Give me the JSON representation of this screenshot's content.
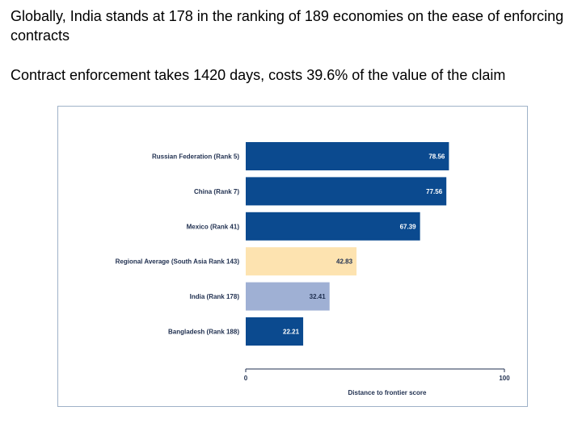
{
  "slide": {
    "headline": "Globally, India stands at 178 in the ranking of 189 economies on the ease of enforcing contracts",
    "subline": "Contract enforcement takes 1420 days, costs 39.6% of the value of the claim"
  },
  "colors": {
    "primary_bar": "#0b4a8f",
    "regional_bar": "#fde3b0",
    "india_bar": "#9fb0d4",
    "axis": "#1f2f4f"
  },
  "chart_data": {
    "type": "bar",
    "orientation": "horizontal",
    "categories": [
      "Russian Federation (Rank 5)",
      "China (Rank 7)",
      "Mexico (Rank 41)",
      "Regional Average (South Asia Rank 143)",
      "India (Rank 178)",
      "Bangladesh (Rank 188)"
    ],
    "values": [
      78.56,
      77.56,
      67.39,
      42.83,
      32.41,
      22.21
    ],
    "value_labels": [
      "78.56",
      "77.56",
      "67.39",
      "42.83",
      "32.41",
      "22.21"
    ],
    "bar_colors": [
      "#0b4a8f",
      "#0b4a8f",
      "#0b4a8f",
      "#fde3b0",
      "#9fb0d4",
      "#0b4a8f"
    ],
    "label_colors": [
      "#ffffff",
      "#ffffff",
      "#ffffff",
      "#1f2f4f",
      "#1f2f4f",
      "#ffffff"
    ],
    "xlim": [
      0,
      100
    ],
    "ticks": [
      "0",
      "100"
    ],
    "xlabel": "Distance to frontier score",
    "grid": false,
    "legend": "none"
  }
}
